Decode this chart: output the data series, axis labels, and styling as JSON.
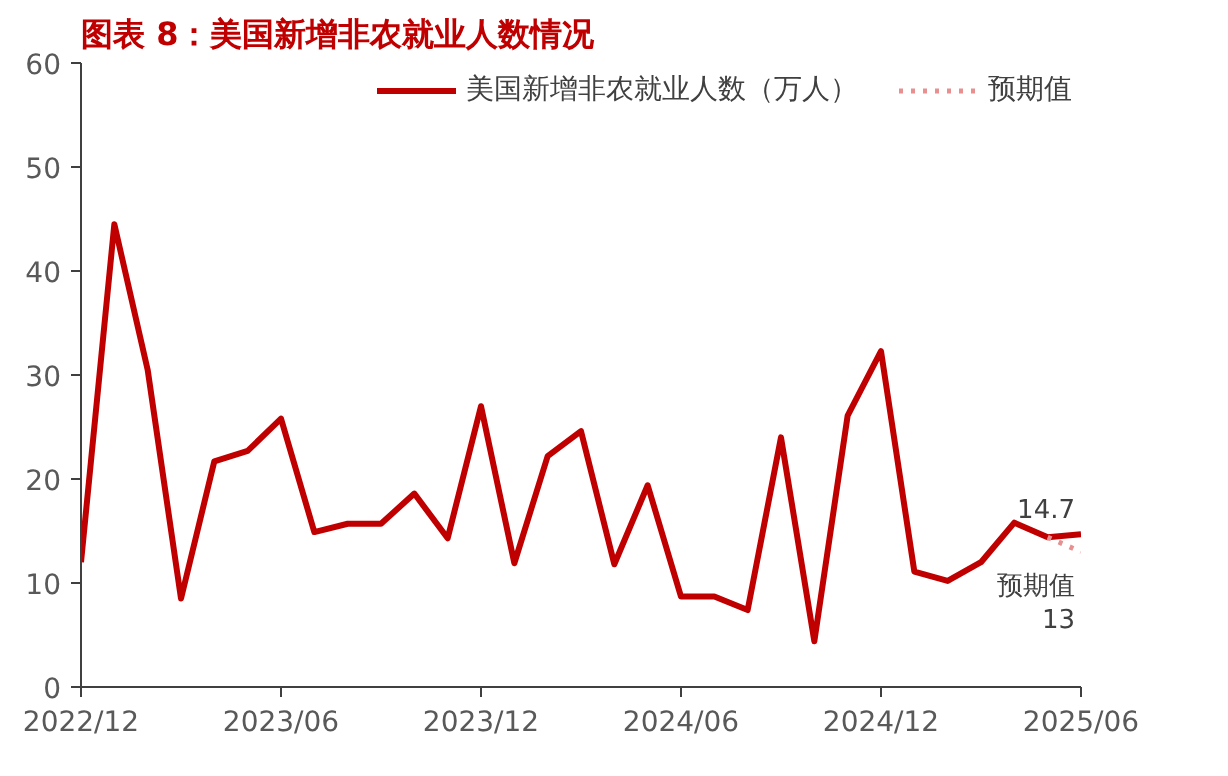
{
  "chart_data": {
    "type": "line",
    "title": "图表 8：美国新增非农就业人数情况",
    "x": [
      "2022-12",
      "2023-01",
      "2023-02",
      "2023-03",
      "2023-04",
      "2023-05",
      "2023-06",
      "2023-07",
      "2023-08",
      "2023-09",
      "2023-10",
      "2023-11",
      "2023-12",
      "2024-01",
      "2024-02",
      "2024-03",
      "2024-04",
      "2024-05",
      "2024-06",
      "2024-07",
      "2024-08",
      "2024-09",
      "2024-10",
      "2024-11",
      "2024-12",
      "2025-01",
      "2025-02",
      "2025-03",
      "2025-04",
      "2025-05",
      "2025-06"
    ],
    "series": [
      {
        "name": "美国新增非农就业人数（万人）",
        "color": "#c00000",
        "line_style": "solid",
        "values": [
          12,
          44.5,
          30.5,
          8.5,
          21.7,
          22.7,
          25.8,
          14.9,
          15.7,
          15.7,
          18.6,
          14.3,
          27.0,
          11.9,
          22.2,
          24.6,
          11.8,
          19.4,
          8.7,
          8.7,
          7.4,
          24.0,
          4.4,
          26.1,
          32.3,
          11.1,
          10.2,
          12.0,
          15.8,
          14.4,
          14.7
        ],
        "value_labels": [
          null,
          null,
          null,
          null,
          null,
          null,
          null,
          null,
          null,
          null,
          null,
          null,
          null,
          null,
          null,
          null,
          null,
          null,
          null,
          null,
          null,
          null,
          null,
          null,
          null,
          null,
          null,
          null,
          null,
          null,
          "14.7"
        ]
      },
      {
        "name": "预期值",
        "color": "#e89090",
        "line_style": "dotted",
        "values": [
          null,
          null,
          null,
          null,
          null,
          null,
          null,
          null,
          null,
          null,
          null,
          null,
          null,
          null,
          null,
          null,
          null,
          null,
          null,
          null,
          null,
          null,
          null,
          null,
          null,
          null,
          null,
          null,
          null,
          14.4,
          13
        ],
        "value_labels": [
          null,
          null,
          null,
          null,
          null,
          null,
          null,
          null,
          null,
          null,
          null,
          null,
          null,
          null,
          null,
          null,
          null,
          null,
          null,
          null,
          null,
          null,
          null,
          null,
          null,
          null,
          null,
          null,
          null,
          null,
          "13"
        ]
      }
    ],
    "annotations": [
      {
        "text": "预期值",
        "x": "2025-06",
        "y": 13
      }
    ],
    "xlim": [
      "2022-12",
      "2025-06"
    ],
    "xticks": [
      {
        "value": "2022-12",
        "label": "2022/12"
      },
      {
        "value": "2023-06",
        "label": "2023/06"
      },
      {
        "value": "2023-12",
        "label": "2023/12"
      },
      {
        "value": "2024-06",
        "label": "2024/06"
      },
      {
        "value": "2024-12",
        "label": "2024/12"
      },
      {
        "value": "2025-06",
        "label": "2025/06"
      }
    ],
    "ylim": [
      0,
      60
    ],
    "yticks": [
      0,
      10,
      20,
      30,
      40,
      50,
      60
    ],
    "grid": false,
    "legend": "top",
    "marker": "none"
  }
}
